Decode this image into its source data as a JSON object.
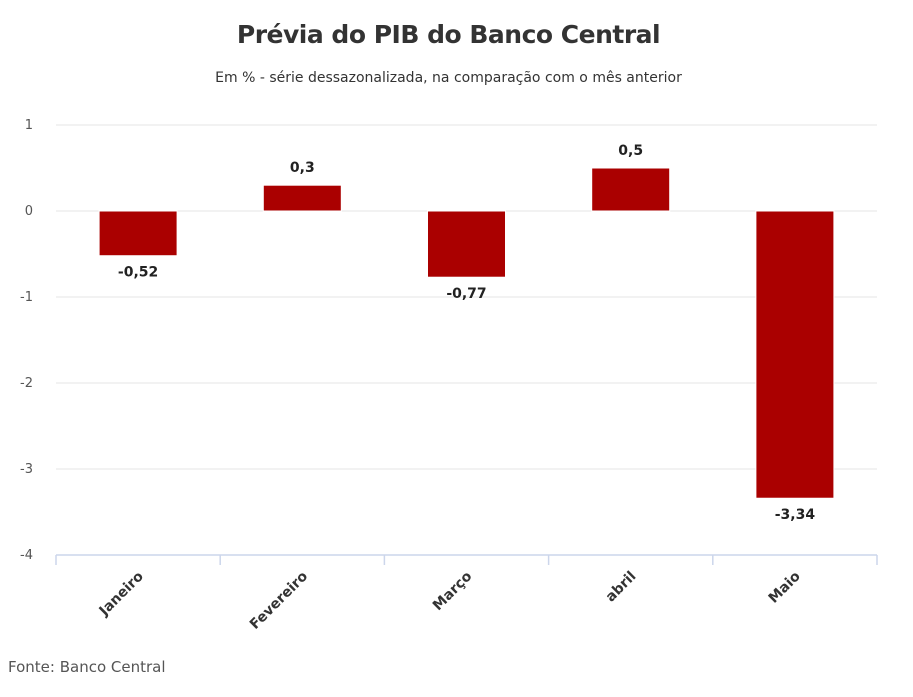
{
  "chart_data": {
    "type": "bar",
    "title": "Prévia do PIB do Banco Central",
    "subtitle": "Em % - série dessazonalizada, na comparação com o mês anterior",
    "categories": [
      "Janeiro",
      "Fevereiro",
      "Março",
      "abril",
      "Maio"
    ],
    "values": [
      -0.52,
      0.3,
      -0.77,
      0.5,
      -3.34
    ],
    "value_labels": [
      "-0,52",
      "0,3",
      "-0,77",
      "0,5",
      "-3,34"
    ],
    "y_ticks": [
      1,
      0,
      -1,
      -2,
      -3,
      -4
    ],
    "ylim": [
      -4,
      1
    ],
    "grid": true,
    "bar_color": "#aa0000",
    "grid_color": "#e6e6e6",
    "axis_color": "#ccd6eb",
    "source": "Fonte: Banco Central"
  }
}
